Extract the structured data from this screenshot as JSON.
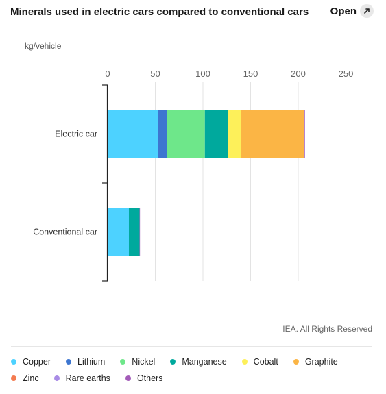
{
  "header": {
    "title": "Minerals used in electric cars compared to conventional cars",
    "open_label": "Open",
    "open_icon": "external-link-icon"
  },
  "credit": "IEA. All Rights Reserved",
  "colors": {
    "Copper": "#4dd2ff",
    "Lithium": "#3d76d0",
    "Nickel": "#6ee78a",
    "Manganese": "#00a99d",
    "Cobalt": "#fdf05a",
    "Graphite": "#fbb545",
    "Zinc": "#f47b50",
    "Rare earths": "#a98ce6",
    "Others": "#a35bb8"
  },
  "chart_data": {
    "type": "bar",
    "orientation": "horizontal",
    "stacked": true,
    "unit_label": "kg/vehicle",
    "categories": [
      "Electric car",
      "Conventional car"
    ],
    "xlim": [
      0,
      250
    ],
    "xticks": [
      0,
      50,
      100,
      150,
      200,
      250
    ],
    "grid": true,
    "legend_position": "bottom",
    "series": [
      {
        "name": "Copper",
        "values": [
          53.2,
          22.3
        ]
      },
      {
        "name": "Lithium",
        "values": [
          8.9,
          0
        ]
      },
      {
        "name": "Nickel",
        "values": [
          39.9,
          0
        ]
      },
      {
        "name": "Manganese",
        "values": [
          24.5,
          11.2
        ]
      },
      {
        "name": "Cobalt",
        "values": [
          13.3,
          0
        ]
      },
      {
        "name": "Graphite",
        "values": [
          66.3,
          0
        ]
      },
      {
        "name": "Zinc",
        "values": [
          0.1,
          0
        ]
      },
      {
        "name": "Rare earths",
        "values": [
          0.5,
          0
        ]
      },
      {
        "name": "Others",
        "values": [
          0.3,
          0.3
        ]
      }
    ]
  }
}
